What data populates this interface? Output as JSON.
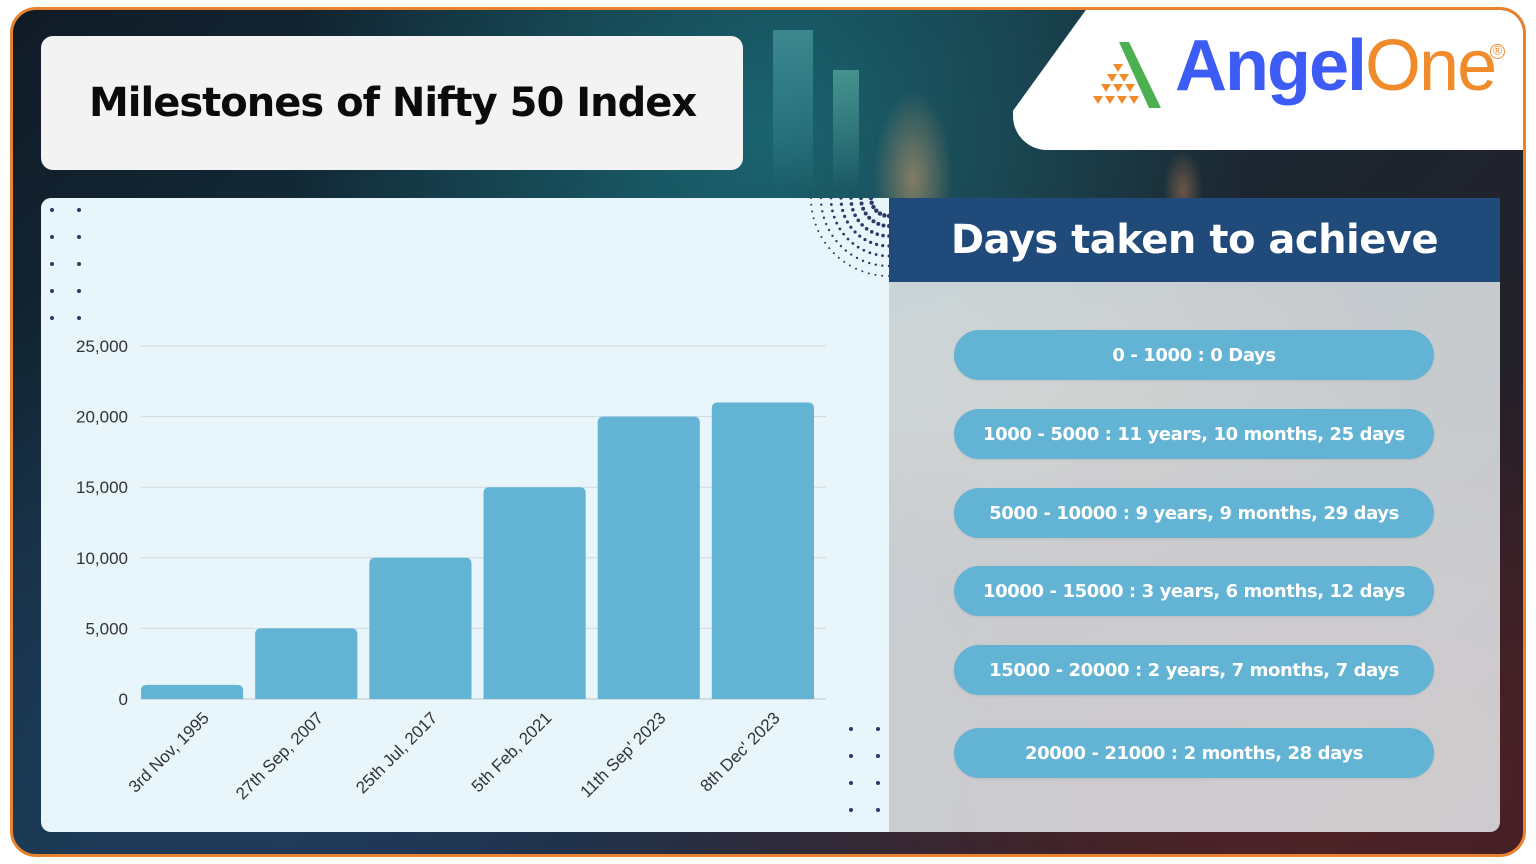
{
  "header": {
    "title": "Milestones of Nifty 50 Index"
  },
  "logo": {
    "brand_part1": "Angel",
    "brand_part2": "One",
    "registered_mark": "®",
    "colors": {
      "angel": "#3d5cf5",
      "one": "#f08b2c",
      "mark_green": "#4caf50",
      "mark_orange": "#f08b2c"
    }
  },
  "right_panel": {
    "title": "Days taken to achieve",
    "items": [
      {
        "label": "0 - 1000 : 0 Days"
      },
      {
        "label": "1000 - 5000 : 11 years, 10 months, 25 days"
      },
      {
        "label": "5000 - 10000 : 9 years, 9 months, 29 days"
      },
      {
        "label": "10000 - 15000 : 3 years, 6 months, 12 days"
      },
      {
        "label": "15000 - 20000 : 2 years, 7 months, 7 days"
      },
      {
        "label": "20000 - 21000 : 2 months, 28 days"
      }
    ]
  },
  "colors": {
    "frame_border": "#e8822f",
    "bar": "#62b3d4",
    "header_bg": "#1f4a7a",
    "pill_bg": "#62b3d4",
    "chart_bg": "#e8f6fb"
  },
  "chart_data": {
    "type": "bar",
    "title": "Milestones of Nifty 50 Index",
    "xlabel": "",
    "ylabel": "",
    "categories": [
      "3rd Nov, 1995",
      "27th Sep, 2007",
      "25th Jul, 2017",
      "5th Feb, 2021",
      "11th Sep' 2023",
      "8th Dec' 2023"
    ],
    "values": [
      1000,
      5000,
      10000,
      15000,
      20000,
      21000
    ],
    "yticks": [
      "0",
      "5,000",
      "10,000",
      "15,000",
      "20,000",
      "25,000"
    ],
    "ylim": [
      0,
      25000
    ],
    "grid": true,
    "legend": null,
    "bar_color": "#62b3d4"
  }
}
